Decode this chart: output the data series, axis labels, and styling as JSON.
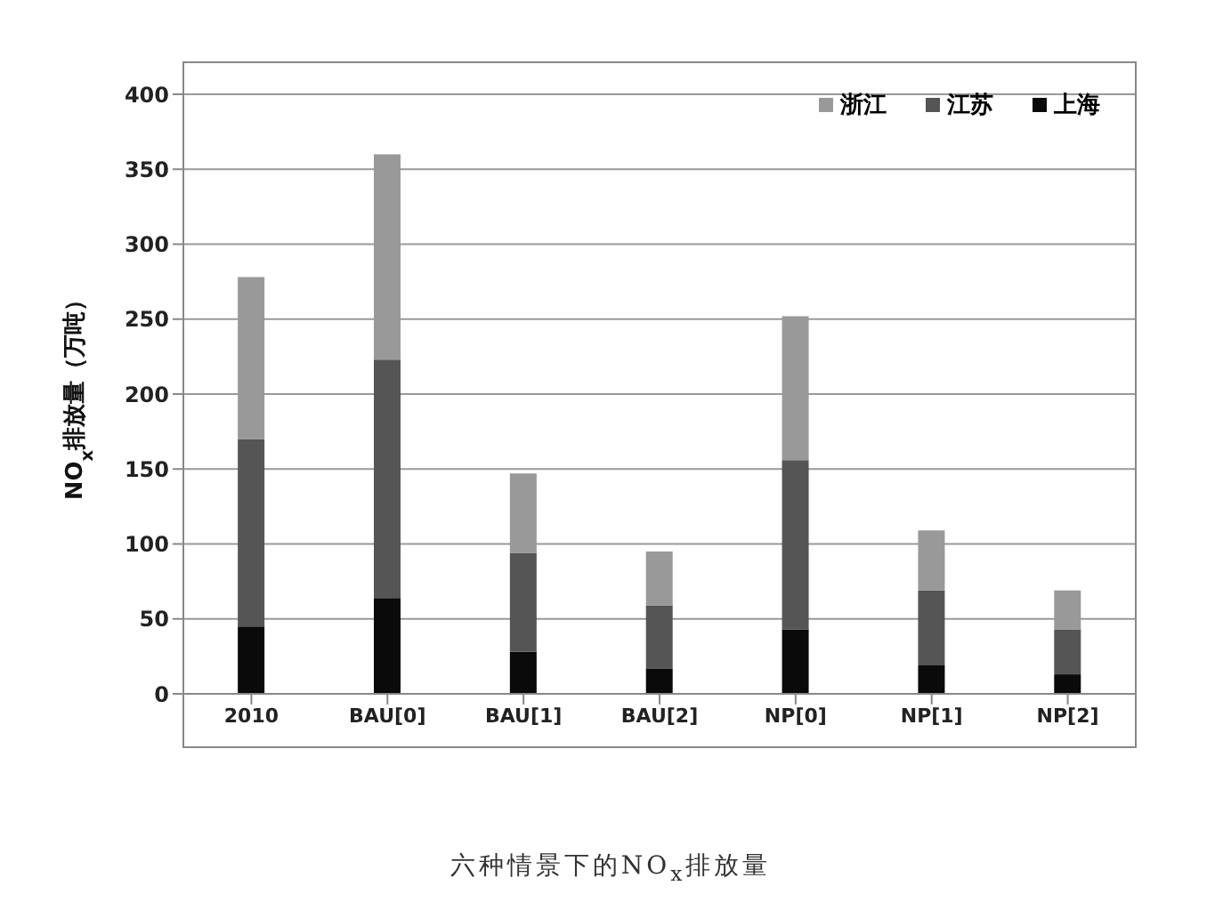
{
  "chart_data": {
    "type": "bar",
    "stacked": true,
    "categories": [
      "2010",
      "BAU[0]",
      "BAU[1]",
      "BAU[2]",
      "NP[0]",
      "NP[1]",
      "NP[2]"
    ],
    "series": [
      {
        "name": "上海",
        "color": "#0a0a0a",
        "values": [
          45,
          64,
          28,
          17,
          43,
          19,
          13
        ]
      },
      {
        "name": "江苏",
        "color": "#555555",
        "values": [
          125,
          159,
          66,
          42,
          113,
          50,
          30
        ]
      },
      {
        "name": "浙江",
        "color": "#999999",
        "values": [
          108,
          137,
          53,
          36,
          96,
          40,
          26
        ]
      }
    ],
    "ylabel": "NO$_{x}$排放量（万吨）",
    "ylim": [
      0,
      400
    ],
    "yticks": [
      0,
      50,
      100,
      150,
      200,
      250,
      300,
      350,
      400
    ],
    "grid": "y",
    "legend": "top right",
    "annotations": [
      "六种情景下的NO$_{x}$排放量"
    ]
  }
}
